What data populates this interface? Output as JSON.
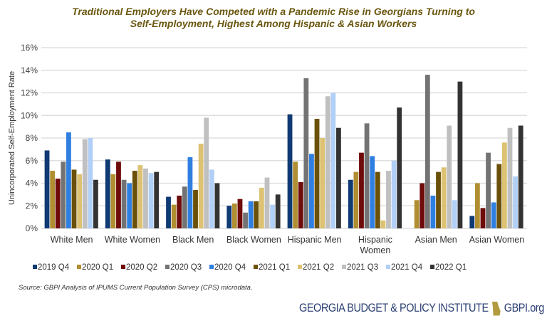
{
  "chart_data": {
    "type": "bar",
    "title": "Traditional Employers Have Competed with a Pandemic Rise in Georgians Turning to Self-Employment, Highest Among Hispanic & Asian Workers",
    "title_lines": [
      "Traditional Employers Have Competed with a Pandemic Rise in Georgians Turning to",
      "Self-Employment, Highest Among Hispanic & Asian Workers"
    ],
    "ylabel": "Unincorporated Self-Employment Rate",
    "ylim": [
      0,
      16
    ],
    "yticks": [
      "0%",
      "2%",
      "4%",
      "6%",
      "8%",
      "10%",
      "12%",
      "14%",
      "16%"
    ],
    "grid": true,
    "legend_position": "bottom",
    "categories": [
      "White Men",
      "White Women",
      "Black Men",
      "Black Women",
      "Hispanic Men",
      "Hispanic Women",
      "Asian Men",
      "Asian Women"
    ],
    "series": [
      {
        "name": "2019 Q4",
        "color": "#0f3a73",
        "values": [
          6.9,
          6.1,
          2.8,
          2.0,
          10.1,
          4.3,
          null,
          1.1
        ]
      },
      {
        "name": "2020 Q1",
        "color": "#b08f32",
        "values": [
          5.1,
          4.8,
          2.1,
          2.2,
          5.9,
          5.0,
          2.5,
          4.0
        ]
      },
      {
        "name": "2020 Q2",
        "color": "#6e0b0b",
        "values": [
          4.4,
          5.9,
          2.9,
          2.6,
          4.1,
          6.7,
          4.0,
          1.8
        ]
      },
      {
        "name": "2020 Q3",
        "color": "#737373",
        "values": [
          5.9,
          4.3,
          3.7,
          1.4,
          13.3,
          9.3,
          13.6,
          6.7
        ]
      },
      {
        "name": "2020 Q4",
        "color": "#2f7fe0",
        "values": [
          8.5,
          4.0,
          6.3,
          2.4,
          6.6,
          6.4,
          2.9,
          2.3
        ]
      },
      {
        "name": "2021 Q1",
        "color": "#6a5008",
        "values": [
          5.2,
          5.1,
          3.4,
          2.4,
          9.7,
          5.0,
          5.0,
          5.7
        ]
      },
      {
        "name": "2021 Q2",
        "color": "#dcc272",
        "values": [
          4.8,
          5.6,
          7.5,
          3.6,
          8.0,
          0.7,
          5.4,
          7.6
        ]
      },
      {
        "name": "2021 Q3",
        "color": "#c0c0c0",
        "values": [
          7.9,
          5.3,
          9.8,
          4.5,
          11.7,
          5.1,
          9.1,
          8.9
        ]
      },
      {
        "name": "2021 Q4",
        "color": "#b1cff7",
        "values": [
          8.0,
          4.9,
          5.2,
          2.1,
          12.0,
          6.0,
          2.5,
          4.6
        ]
      },
      {
        "name": "2022 Q1",
        "color": "#333333",
        "values": [
          4.3,
          5.0,
          4.0,
          3.0,
          8.9,
          10.7,
          13.0,
          9.1
        ]
      }
    ]
  },
  "source": "Source: GBPI Analysis of IPUMS Current Population Survey (CPS) microdata.",
  "brand": {
    "name": "GEORGIA BUDGET & POLICY INSTITUTE",
    "url": "GBPI.org"
  }
}
